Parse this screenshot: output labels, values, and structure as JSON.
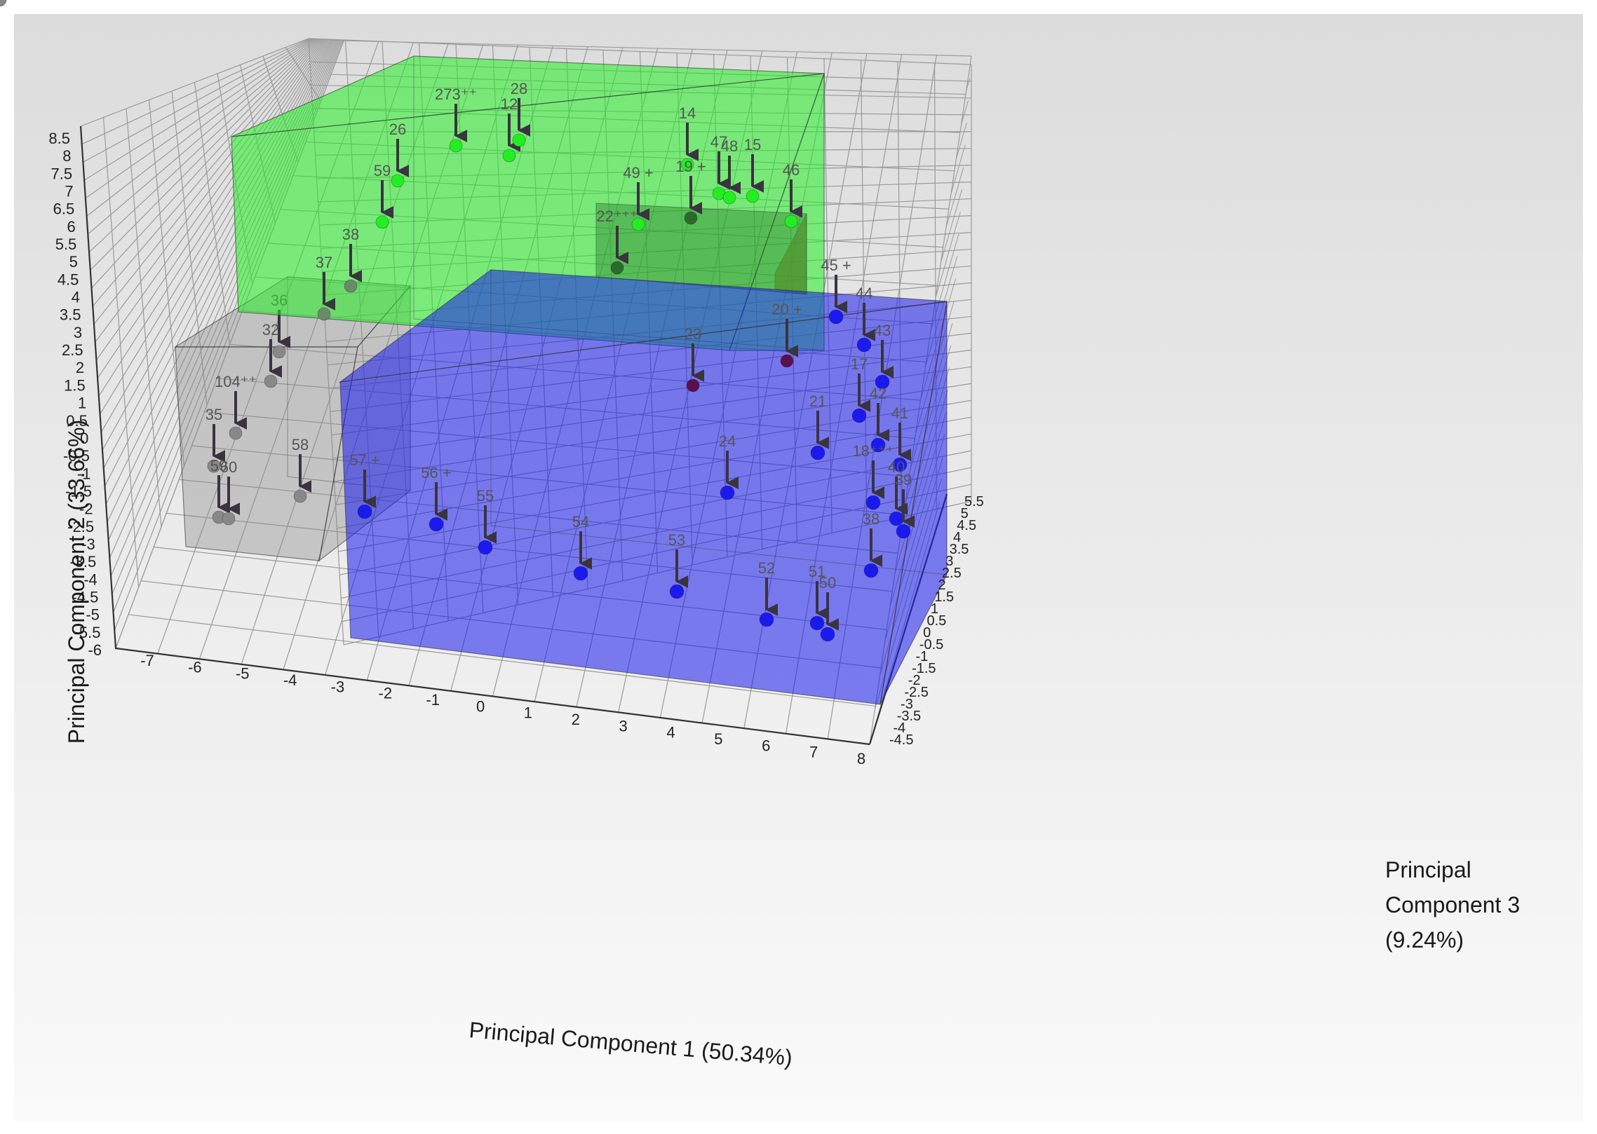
{
  "chart_data": {
    "type": "scatter",
    "projection": "3d",
    "xlabel": "Principal Component 1 (50.34%)",
    "ylabel": "Principal Component 2 (33.66%)",
    "zlabel_lines": [
      "Principal",
      "Component 3",
      "(9.24%)"
    ],
    "x_ticks": [
      "-7",
      "-6",
      "-5",
      "-4",
      "-3",
      "-2",
      "-1",
      "0",
      "1",
      "2",
      "3",
      "4",
      "5",
      "6",
      "7",
      "8"
    ],
    "y_ticks": [
      "8.5",
      "8",
      "7.5",
      "7",
      "6.5",
      "6",
      "5.5",
      "5",
      "4.5",
      "4",
      "3.5",
      "3",
      "2.5",
      "2",
      "1.5",
      "1",
      "0.5",
      "0",
      "-0.5",
      "-1",
      "-1.5",
      "-2",
      "-2.5",
      "-3",
      "-3.5",
      "-4",
      "-4.5",
      "-5",
      "-5.5",
      "-6"
    ],
    "z_ticks": [
      "5.5",
      "5",
      "4.5",
      "4",
      "3.5",
      "3",
      "2.5",
      "2",
      "1.5",
      "1",
      "0.5",
      "0",
      "-0.5",
      "-1",
      "-1.5",
      "-2",
      "-2.5",
      "-3",
      "-3.5",
      "-4",
      "-4.5"
    ],
    "xlim": [
      -7,
      8
    ],
    "ylim": [
      -6,
      8.5
    ],
    "zlim": [
      -4.5,
      5.5
    ],
    "grid": true,
    "colors": {
      "green_group": "#22ee22",
      "blue_group": "#1a1aee",
      "gray_group": "#888888",
      "red_group": "#d06060",
      "dark_green_point": "#2a6a2a",
      "purple_point": "#5a1050",
      "arrow": "#3a3340"
    },
    "groups": [
      {
        "name": "green",
        "color": "#22ee22"
      },
      {
        "name": "blue",
        "color": "#1a1aee"
      },
      {
        "name": "gray",
        "color": "#888888"
      },
      {
        "name": "red",
        "color": "#d06060"
      }
    ],
    "points": [
      {
        "label": "273⁺⁺",
        "group": "green",
        "pc1": -0.3,
        "pc2": 7.8
      },
      {
        "label": "12",
        "group": "green",
        "pc1": 0.8,
        "pc2": 7.6
      },
      {
        "label": "28",
        "group": "green",
        "pc1": 1.0,
        "pc2": 8.1
      },
      {
        "label": "26",
        "group": "green",
        "pc1": -2.2,
        "pc2": 7.0
      },
      {
        "label": "59",
        "group": "green",
        "pc1": -2.5,
        "pc2": 6.2
      },
      {
        "label": "14",
        "group": "green",
        "pc1": 4.6,
        "pc2": 7.2
      },
      {
        "label": "47",
        "group": "green",
        "pc1": 5.3,
        "pc2": 6.6
      },
      {
        "label": "48",
        "group": "green",
        "pc1": 5.5,
        "pc2": 6.5
      },
      {
        "label": "15",
        "group": "green",
        "pc1": 6.0,
        "pc2": 6.5
      },
      {
        "label": "46",
        "group": "green",
        "pc1": 6.7,
        "pc2": 5.8
      },
      {
        "label": "49 +",
        "group": "green",
        "pc1": 3.3,
        "pc2": 6.0
      },
      {
        "label": "19 +",
        "group": "green",
        "pc1": 4.6,
        "pc2": 6.1
      },
      {
        "label": "22⁺⁺⁺",
        "group": "green",
        "pc1": 2.9,
        "pc2": 4.8
      },
      {
        "label": "38",
        "group": "green",
        "pc1": -3.2,
        "pc2": 4.2
      },
      {
        "label": "37",
        "group": "green",
        "pc1": -3.7,
        "pc2": 3.3
      },
      {
        "label": "45 +",
        "group": "blue",
        "pc1": 8.0,
        "pc2": 3.2
      },
      {
        "label": "44",
        "group": "blue",
        "pc1": 8.5,
        "pc2": 2.7
      },
      {
        "label": "43",
        "group": "blue",
        "pc1": 8.8,
        "pc2": 1.7
      },
      {
        "label": "20 +",
        "group": "red",
        "pc1": 6.5,
        "pc2": 2.3
      },
      {
        "label": "23",
        "group": "red",
        "pc1": 4.7,
        "pc2": 1.7
      },
      {
        "label": "17",
        "group": "blue",
        "pc1": 8.4,
        "pc2": 0.8
      },
      {
        "label": "42",
        "group": "blue",
        "pc1": 8.6,
        "pc2": 0.0
      },
      {
        "label": "41",
        "group": "blue",
        "pc1": 8.9,
        "pc2": -0.5
      },
      {
        "label": "21",
        "group": "blue",
        "pc1": 6.8,
        "pc2": 0.0
      },
      {
        "label": "24",
        "group": "blue",
        "pc1": 5.2,
        "pc2": -1.0
      },
      {
        "label": "18⁺⁺⁺",
        "group": "blue",
        "pc1": 8.5,
        "pc2": -1.2
      },
      {
        "label": "40",
        "group": "blue",
        "pc1": 8.9,
        "pc2": -1.5
      },
      {
        "label": "39",
        "group": "blue",
        "pc1": 9.0,
        "pc2": -2.0
      },
      {
        "label": "38",
        "group": "blue",
        "pc1": 8.4,
        "pc2": -3.0
      },
      {
        "label": "57 +",
        "group": "blue",
        "pc1": -1.3,
        "pc2": -2.3
      },
      {
        "label": "56 +",
        "group": "blue",
        "pc1": 0.0,
        "pc2": -2.5
      },
      {
        "label": "55",
        "group": "blue",
        "pc1": 0.9,
        "pc2": -2.9
      },
      {
        "label": "54",
        "group": "blue",
        "pc1": 2.6,
        "pc2": -3.3
      },
      {
        "label": "53",
        "group": "blue",
        "pc1": 4.2,
        "pc2": -3.5
      },
      {
        "label": "52",
        "group": "blue",
        "pc1": 5.7,
        "pc2": -4.2
      },
      {
        "label": "51",
        "group": "blue",
        "pc1": 6.6,
        "pc2": -4.3
      },
      {
        "label": "50",
        "group": "blue",
        "pc1": 6.8,
        "pc2": -4.4
      },
      {
        "label": "36",
        "group": "gray",
        "pc1": -4.8,
        "pc2": 2.5
      },
      {
        "label": "32",
        "group": "gray",
        "pc1": -5.0,
        "pc2": 2.0
      },
      {
        "label": "104⁺⁺",
        "group": "gray",
        "pc1": -5.6,
        "pc2": 0.5
      },
      {
        "label": "35",
        "group": "gray",
        "pc1": -6.0,
        "pc2": -0.3
      },
      {
        "label": "59",
        "group": "gray",
        "pc1": -5.9,
        "pc2": -1.2
      },
      {
        "label": "60",
        "group": "gray",
        "pc1": -6.1,
        "pc2": -1.7
      },
      {
        "label": "58",
        "group": "gray",
        "pc1": -5.9,
        "pc2": -1.7
      },
      {
        "label": "58",
        "group": "gray",
        "pc1": -4.2,
        "pc2": -1.3
      }
    ]
  }
}
